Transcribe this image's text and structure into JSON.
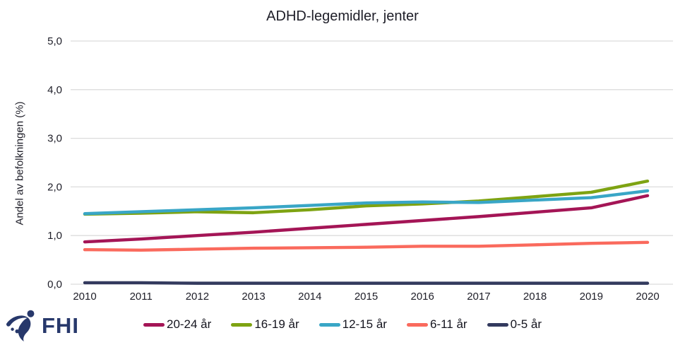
{
  "colors": {
    "grid": "#dcdcdc",
    "axis_text": "#1e1e28",
    "title_text": "#1e1e28",
    "logo_navy": "#27386b"
  },
  "chart_data": {
    "type": "line",
    "title": "ADHD-legemidler, jenter",
    "xlabel": "",
    "ylabel": "Andel av befolkningen (%)",
    "ylim": [
      0,
      5
    ],
    "ytick_step": 1.0,
    "ytick_labels": [
      "0,0",
      "1,0",
      "2,0",
      "3,0",
      "4,0",
      "5,0"
    ],
    "grid": "horizontal-only",
    "legend_position": "bottom",
    "x": [
      "2010",
      "2011",
      "2012",
      "2013",
      "2014",
      "2015",
      "2016",
      "2017",
      "2018",
      "2019",
      "2020"
    ],
    "series": [
      {
        "name": "20-24 år",
        "color": "#a41556",
        "values": [
          0.87,
          0.93,
          1.0,
          1.07,
          1.15,
          1.23,
          1.31,
          1.39,
          1.48,
          1.57,
          1.82
        ]
      },
      {
        "name": "16-19 år",
        "color": "#7ea312",
        "values": [
          1.44,
          1.46,
          1.49,
          1.47,
          1.53,
          1.61,
          1.65,
          1.71,
          1.8,
          1.89,
          2.12
        ]
      },
      {
        "name": "12-15 år",
        "color": "#39a6c6",
        "values": [
          1.45,
          1.49,
          1.53,
          1.57,
          1.62,
          1.67,
          1.69,
          1.68,
          1.73,
          1.78,
          1.92
        ]
      },
      {
        "name": "6-11 år",
        "color": "#fa6a5d",
        "values": [
          0.71,
          0.7,
          0.72,
          0.74,
          0.75,
          0.76,
          0.78,
          0.78,
          0.81,
          0.84,
          0.86
        ]
      },
      {
        "name": "0-5 år",
        "color": "#333a5e",
        "values": [
          0.03,
          0.03,
          0.02,
          0.02,
          0.02,
          0.02,
          0.02,
          0.02,
          0.02,
          0.02,
          0.02
        ]
      }
    ]
  },
  "logo": {
    "text": "FHI"
  }
}
